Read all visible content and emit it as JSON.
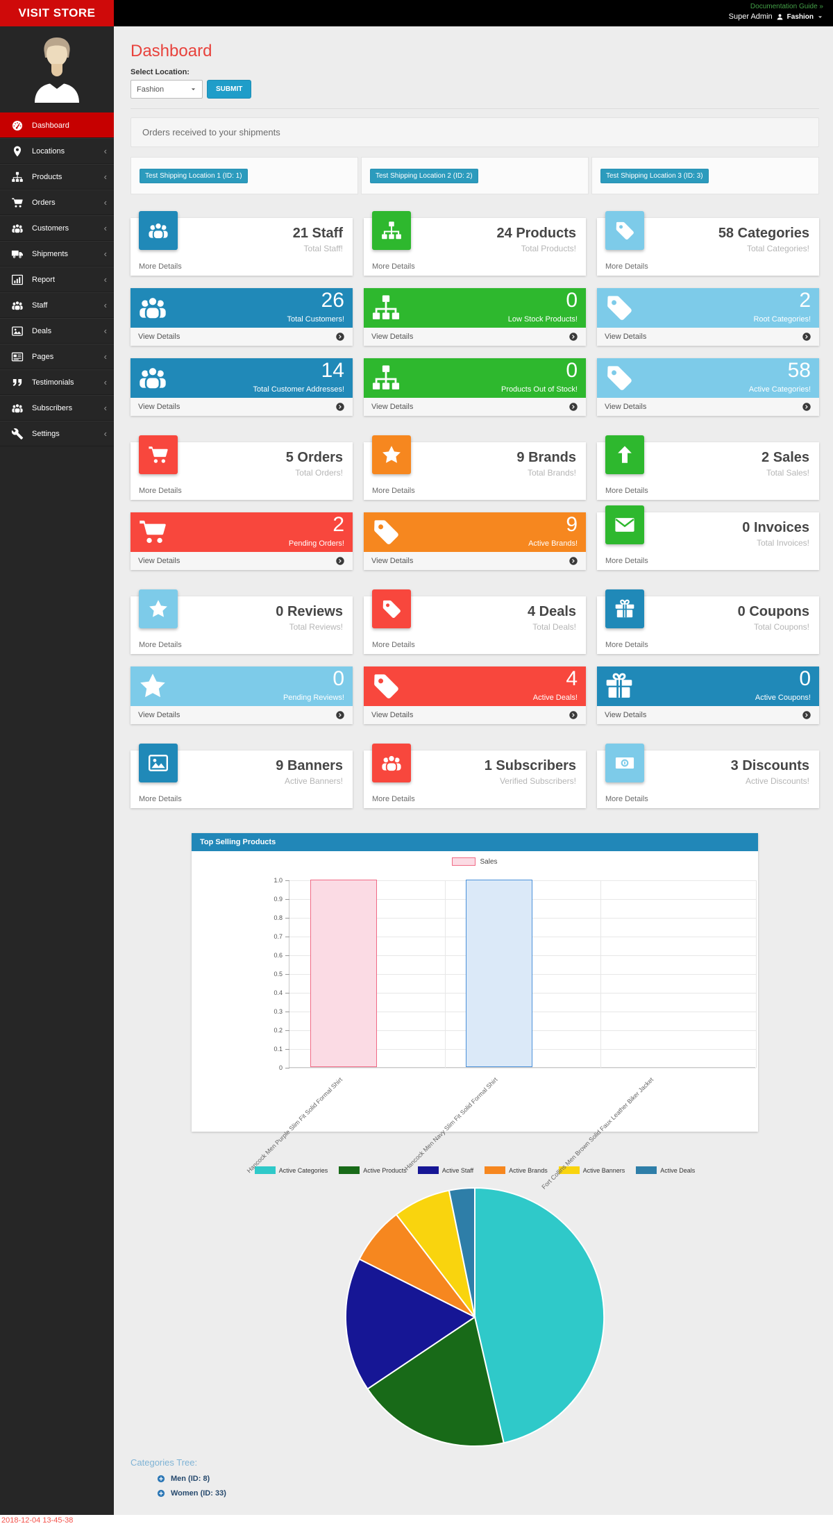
{
  "colors": {
    "topbar_bg": "#000000",
    "brand_bg": "#cf0a0a",
    "sidebar_bg": "#262626",
    "sidebar_active_bg": "#c60000",
    "page_bg": "#ededed",
    "title_red": "#e8423c",
    "doc_link_green": "#43a047",
    "submit_button_blue": "#1f9dc9",
    "ship_button_blue": "#2c9bbd",
    "chart_header_blue": "#2187b8",
    "tile_palette": {
      "blue": "#2089b8",
      "green": "#2eb82e",
      "lightblue": "#7dcbe9",
      "red": "#f8473d",
      "orange": "#f6871f"
    },
    "tree_title_blue": "#7fb3d5",
    "tree_item_blue": "#26496d",
    "timestamp_red": "#f4524a"
  },
  "header": {
    "brand": "VISIT STORE",
    "doc_link": "Documentation Guide »",
    "user": "Super Admin",
    "user_icon": "person-icon",
    "store": "Fashion"
  },
  "sidebar": {
    "items": [
      {
        "label": "Dashboard",
        "icon": "dashboard-icon",
        "active": true
      },
      {
        "label": "Locations",
        "icon": "map-marker-icon"
      },
      {
        "label": "Products",
        "icon": "sitemap-icon"
      },
      {
        "label": "Orders",
        "icon": "cart-icon"
      },
      {
        "label": "Customers",
        "icon": "users-icon"
      },
      {
        "label": "Shipments",
        "icon": "truck-icon"
      },
      {
        "label": "Report",
        "icon": "bar-chart-icon"
      },
      {
        "label": "Staff",
        "icon": "users-icon"
      },
      {
        "label": "Deals",
        "icon": "image-icon"
      },
      {
        "label": "Pages",
        "icon": "newspaper-icon"
      },
      {
        "label": "Testimonials",
        "icon": "quote-icon"
      },
      {
        "label": "Subscribers",
        "icon": "users-icon"
      },
      {
        "label": "Settings",
        "icon": "wrench-icon"
      }
    ]
  },
  "main": {
    "title": "Dashboard",
    "select_location_label": "Select Location:",
    "location_value": "Fashion",
    "submit_label": "SUBMIT",
    "orders_panel_title": "Orders received to your shipments",
    "shipping_locations": [
      "Test Shipping Location 1 (ID: 1)",
      "Test Shipping Location 2 (ID: 2)",
      "Test Shipping Location 3 (ID: 3)"
    ],
    "tile_rows": [
      [
        {
          "style": "white",
          "color": "blue",
          "icon": "users-icon",
          "value": "21",
          "title": "Staff",
          "subtitle": "Total Staff!",
          "link": "More Details"
        },
        {
          "style": "white",
          "color": "green",
          "icon": "sitemap-icon",
          "value": "24",
          "title": "Products",
          "subtitle": "Total Products!",
          "link": "More Details"
        },
        {
          "style": "white",
          "color": "lightblue",
          "icon": "tag-icon",
          "value": "58",
          "title": "Categories",
          "subtitle": "Total Categories!",
          "link": "More Details"
        }
      ],
      [
        {
          "style": "solid",
          "color": "blue",
          "icon": "users-icon",
          "value": "26",
          "subtitle": "Total Customers!",
          "link": "View Details"
        },
        {
          "style": "solid",
          "color": "green",
          "icon": "sitemap-icon",
          "value": "0",
          "subtitle": "Low Stock Products!",
          "link": "View Details"
        },
        {
          "style": "solid",
          "color": "lightblue",
          "icon": "tag-icon",
          "value": "2",
          "subtitle": "Root Categories!",
          "link": "View Details"
        }
      ],
      [
        {
          "style": "solid",
          "color": "blue",
          "icon": "users-icon",
          "value": "14",
          "subtitle": "Total Customer Addresses!",
          "link": "View Details"
        },
        {
          "style": "solid",
          "color": "green",
          "icon": "sitemap-icon",
          "value": "0",
          "subtitle": "Products Out of Stock!",
          "link": "View Details"
        },
        {
          "style": "solid",
          "color": "lightblue",
          "icon": "tag-icon",
          "value": "58",
          "subtitle": "Active Categories!",
          "link": "View Details"
        }
      ],
      [
        {
          "style": "white",
          "color": "red",
          "icon": "cart-icon",
          "value": "5",
          "title": "Orders",
          "subtitle": "Total Orders!",
          "link": "More Details"
        },
        {
          "style": "white",
          "color": "orange",
          "icon": "star-icon",
          "value": "9",
          "title": "Brands",
          "subtitle": "Total Brands!",
          "link": "More Details"
        },
        {
          "style": "white",
          "color": "green",
          "icon": "arrow-up-icon",
          "value": "2",
          "title": "Sales",
          "subtitle": "Total Sales!",
          "link": "More Details"
        }
      ],
      [
        {
          "style": "solid",
          "color": "red",
          "icon": "cart-icon",
          "value": "2",
          "subtitle": "Pending Orders!",
          "link": "View Details"
        },
        {
          "style": "solid",
          "color": "orange",
          "icon": "tag-icon",
          "value": "9",
          "subtitle": "Active Brands!",
          "link": "View Details"
        },
        {
          "style": "white",
          "color": "green",
          "icon": "envelope-icon",
          "value": "0",
          "title": "Invoices",
          "subtitle": "Total Invoices!",
          "link": "More Details"
        }
      ],
      [
        {
          "style": "white",
          "color": "lightblue",
          "icon": "star-icon",
          "value": "0",
          "title": "Reviews",
          "subtitle": "Total Reviews!",
          "link": "More Details"
        },
        {
          "style": "white",
          "color": "red",
          "icon": "tag-icon",
          "value": "4",
          "title": "Deals",
          "subtitle": "Total Deals!",
          "link": "More Details"
        },
        {
          "style": "white",
          "color": "blue",
          "icon": "gift-icon",
          "value": "0",
          "title": "Coupons",
          "subtitle": "Total Coupons!",
          "link": "More Details"
        }
      ],
      [
        {
          "style": "solid",
          "color": "lightblue",
          "icon": "star-icon",
          "value": "0",
          "subtitle": "Pending Reviews!",
          "link": "View Details"
        },
        {
          "style": "solid",
          "color": "red",
          "icon": "tag-icon",
          "value": "4",
          "subtitle": "Active Deals!",
          "link": "View Details"
        },
        {
          "style": "solid",
          "color": "blue",
          "icon": "gift-icon",
          "value": "0",
          "subtitle": "Active Coupons!",
          "link": "View Details"
        }
      ],
      [
        {
          "style": "white",
          "color": "blue",
          "icon": "image-icon",
          "value": "9",
          "title": "Banners",
          "subtitle": "Active Banners!",
          "link": "More Details"
        },
        {
          "style": "white",
          "color": "red",
          "icon": "users-icon",
          "value": "1",
          "title": "Subscribers",
          "subtitle": "Verified Subscribers!",
          "link": "More Details"
        },
        {
          "style": "white",
          "color": "lightblue",
          "icon": "money-icon",
          "value": "3",
          "title": "Discounts",
          "subtitle": "Active Discounts!",
          "link": "More Details"
        }
      ]
    ]
  },
  "chart_data": [
    {
      "type": "bar",
      "title": "Top Selling Products",
      "legend": "Sales",
      "categories": [
        "Hancock Men Purple Slim Fit Solid Formal Shirt",
        "Hancock Men Navy Slim Fit Solid Formal Shirt",
        "Fort Collins Men Brown Solid Faux Leather Biker Jacket"
      ],
      "values": [
        1.0,
        1.0,
        0
      ],
      "ylim": [
        0,
        1.0
      ],
      "yticks": [
        "1.0",
        "0.9",
        "0.8",
        "0.7",
        "0.6",
        "0.5",
        "0.4",
        "0.3",
        "0.2",
        "0.1",
        "0"
      ],
      "bar_fills": [
        "#fbdbe4",
        "#dbe9f8"
      ],
      "bar_borders": [
        "#f06a85",
        "#4a90d9"
      ],
      "grid": true,
      "legend_position": "top-center"
    },
    {
      "type": "pie",
      "series": [
        {
          "name": "Active Categories",
          "value": 58,
          "color": "#2fc9c9"
        },
        {
          "name": "Active Products",
          "value": 24,
          "color": "#186a18"
        },
        {
          "name": "Active Staff",
          "value": 21,
          "color": "#161695"
        },
        {
          "name": "Active Brands",
          "value": 9,
          "color": "#f6871f"
        },
        {
          "name": "Active Banners",
          "value": 9,
          "color": "#f9d40e"
        },
        {
          "name": "Active Deals",
          "value": 4,
          "color": "#2e7ea8"
        }
      ],
      "legend_position": "top"
    }
  ],
  "categories_tree": {
    "title": "Categories Tree:",
    "items": [
      "Men (ID: 8)",
      "Women (ID: 33)"
    ]
  },
  "footer": {
    "timestamp": "2018-12-04 13-45-38"
  }
}
